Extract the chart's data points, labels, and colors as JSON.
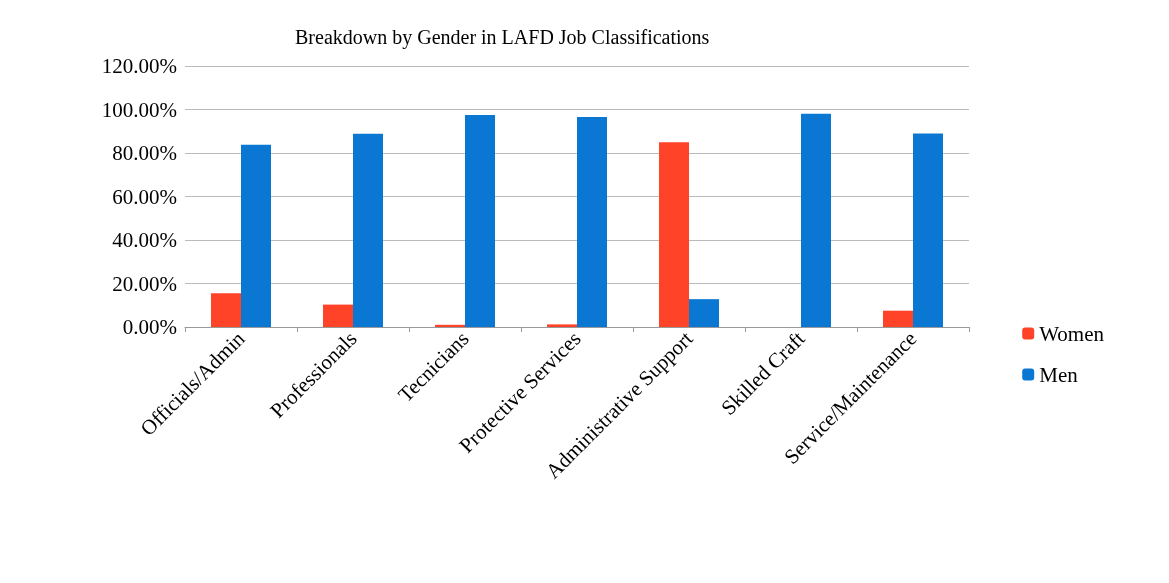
{
  "chart_data": {
    "type": "bar",
    "title": "Breakdown by Gender in LAFD Job Classifications",
    "categories": [
      "Officials/Admin",
      "Professionals",
      "Tecnicians",
      "Protective Services",
      "Administrative Support",
      "Skilled Craft",
      "Service/Maintenance"
    ],
    "series": [
      {
        "name": "Women",
        "color": "#ff4329",
        "values": [
          15.5,
          10.3,
          1,
          1.2,
          85,
          0,
          7.5
        ]
      },
      {
        "name": "Men",
        "color": "#0a78d2",
        "values": [
          83.8,
          88.9,
          97.5,
          96.5,
          12.8,
          98,
          89
        ]
      }
    ],
    "ylim": [
      0,
      120
    ],
    "yticks": [
      {
        "value": 0,
        "label": "0.00%"
      },
      {
        "value": 20,
        "label": "20.00%"
      },
      {
        "value": 40,
        "label": "40.00%"
      },
      {
        "value": 60,
        "label": "60.00%"
      },
      {
        "value": 80,
        "label": "80.00%"
      },
      {
        "value": 100,
        "label": "100.00%"
      },
      {
        "value": 120,
        "label": "120.00%"
      }
    ],
    "grid": "y",
    "legend": "right"
  }
}
